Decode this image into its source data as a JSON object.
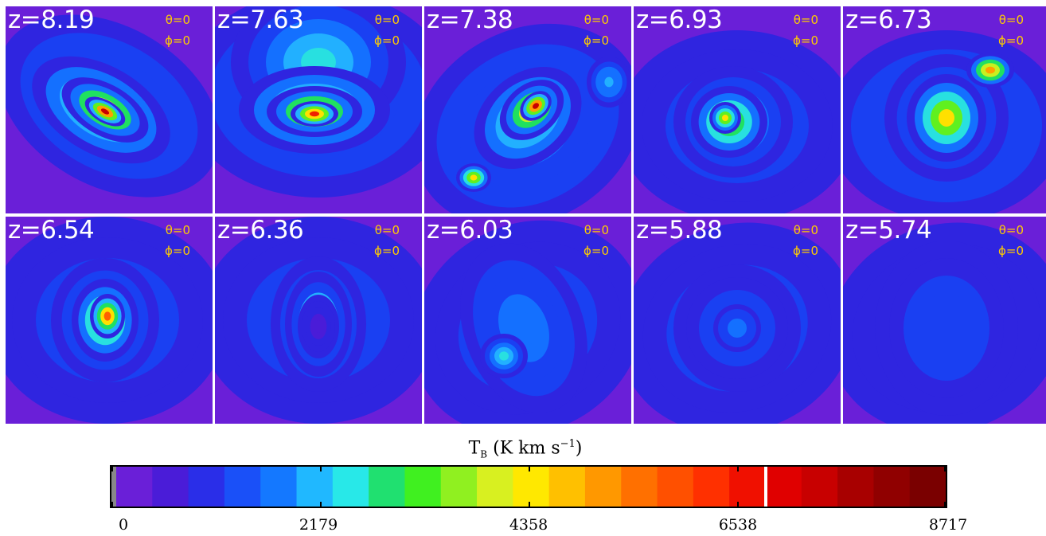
{
  "panels": [
    {
      "z_label": "z=8.19",
      "theta_label": "θ=0",
      "phi_label": "ϕ=0"
    },
    {
      "z_label": "z=7.63",
      "theta_label": "θ=0",
      "phi_label": "ϕ=0"
    },
    {
      "z_label": "z=7.38",
      "theta_label": "θ=0",
      "phi_label": "ϕ=0"
    },
    {
      "z_label": "z=6.93",
      "theta_label": "θ=0",
      "phi_label": "ϕ=0"
    },
    {
      "z_label": "z=6.73",
      "theta_label": "θ=0",
      "phi_label": "ϕ=0"
    },
    {
      "z_label": "z=6.54",
      "theta_label": "θ=0",
      "phi_label": "ϕ=0"
    },
    {
      "z_label": "z=6.36",
      "theta_label": "θ=0",
      "phi_label": "ϕ=0"
    },
    {
      "z_label": "z=6.03",
      "theta_label": "θ=0",
      "phi_label": "ϕ=0"
    },
    {
      "z_label": "z=5.88",
      "theta_label": "θ=0",
      "phi_label": "ϕ=0"
    },
    {
      "z_label": "z=5.74",
      "theta_label": "θ=0",
      "phi_label": "ϕ=0"
    }
  ],
  "colorbar": {
    "label_main": "T",
    "label_sub": "B",
    "label_rest": " (K km s",
    "label_sup": "−1",
    "label_close": ")",
    "ticks": [
      "0",
      "2179",
      "4358",
      "6538",
      "8717"
    ],
    "range": [
      0,
      8717
    ]
  },
  "colors": {
    "background": "#6a1fd8",
    "angle_text": "#ffcc00",
    "label_text": "#ffffff"
  }
}
